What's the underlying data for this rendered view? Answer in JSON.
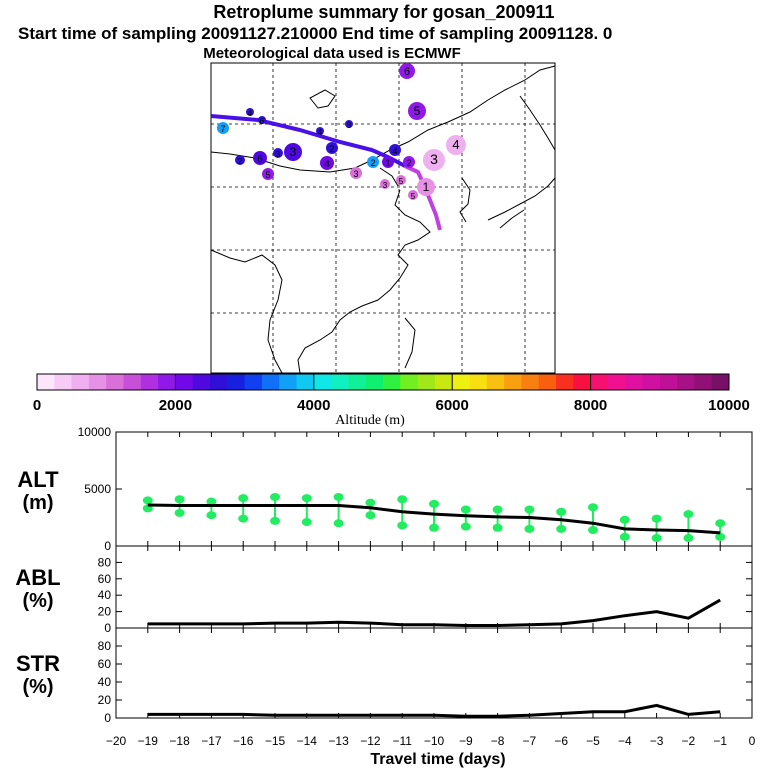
{
  "header": {
    "title": "Retroplume summary for gosan_200911",
    "subtitle": "Start time of sampling 20091127.210000     End time of sampling 20091128.     0",
    "met_line": "Meteorological data used is ECMWF"
  },
  "colorbar": {
    "label": "Altitude (m)",
    "ticks": [
      "0",
      "2000",
      "4000",
      "6000",
      "8000",
      "10000"
    ],
    "colors": [
      "#fbe6fb",
      "#f6ccf6",
      "#efb0ef",
      "#e690e6",
      "#d870d8",
      "#c850d8",
      "#b030e0",
      "#9018e8",
      "#7008e8",
      "#5008e0",
      "#3010d8",
      "#1820e0",
      "#1040f0",
      "#1070f8",
      "#10a0f8",
      "#10c8f0",
      "#10e8e8",
      "#10f0c0",
      "#10f098",
      "#10f070",
      "#30f040",
      "#70f020",
      "#a0e818",
      "#c8e810",
      "#f0f010",
      "#f8e010",
      "#f8c010",
      "#f8a010",
      "#f88010",
      "#f86010",
      "#f83020",
      "#f81040",
      "#f81070",
      "#f01090",
      "#e010a0",
      "#d010a0",
      "#c01098",
      "#a81088",
      "#901078",
      "#781068"
    ]
  },
  "map": {
    "plume_labels": [
      "6",
      "5",
      "4",
      "3",
      "2",
      "1",
      "4",
      "3",
      "2",
      "1",
      "5",
      "4",
      "3",
      "6",
      "5",
      "7",
      "4",
      "3",
      "2",
      "2",
      "3",
      "3",
      "4",
      "5",
      "6"
    ]
  },
  "chart_data": [
    {
      "type": "line",
      "panel": "ALT",
      "ylabel": "ALT (m)",
      "ylim": [
        0,
        10000
      ],
      "yticks": [
        "0",
        "5000",
        "10000"
      ],
      "x": [
        -19,
        -18,
        -17,
        -16,
        -15,
        -14,
        -13,
        -12,
        -11,
        -10,
        -9,
        -8,
        -7,
        -6,
        -5,
        -4,
        -3,
        -2,
        -1
      ],
      "series": [
        {
          "name": "mean altitude",
          "values": [
            3600,
            3550,
            3550,
            3550,
            3550,
            3550,
            3550,
            3350,
            3000,
            2800,
            2650,
            2550,
            2500,
            2300,
            2000,
            1500,
            1400,
            1350,
            1150
          ]
        },
        {
          "name": "cluster altitude (high)",
          "values": [
            4000,
            4100,
            3900,
            4200,
            4300,
            4200,
            4300,
            3800,
            4100,
            3700,
            3200,
            3200,
            3200,
            3000,
            3400,
            2300,
            2400,
            2800,
            2000
          ]
        },
        {
          "name": "cluster altitude (low)",
          "values": [
            3300,
            2900,
            2700,
            2400,
            2200,
            2100,
            2000,
            2700,
            1800,
            1600,
            1700,
            1600,
            1500,
            1500,
            1400,
            800,
            700,
            700,
            800
          ]
        }
      ]
    },
    {
      "type": "line",
      "panel": "ABL",
      "ylabel": "ABL (%)",
      "ylim": [
        0,
        100
      ],
      "yticks": [
        "0",
        "20",
        "40",
        "60",
        "80"
      ],
      "x": [
        -19,
        -18,
        -17,
        -16,
        -15,
        -14,
        -13,
        -12,
        -11,
        -10,
        -9,
        -8,
        -7,
        -6,
        -5,
        -4,
        -3,
        -2,
        -1
      ],
      "series": [
        {
          "name": "ABL fraction",
          "values": [
            5,
            5,
            5,
            5,
            6,
            6,
            7,
            6,
            4,
            4,
            3,
            3,
            4,
            5,
            9,
            15,
            20,
            12,
            34
          ]
        }
      ]
    },
    {
      "type": "line",
      "panel": "STR",
      "xlabel": "Travel time (days)",
      "ylabel": "STR (%)",
      "ylim": [
        0,
        100
      ],
      "yticks": [
        "0",
        "20",
        "40",
        "60",
        "80"
      ],
      "xticks": [
        "−20",
        "−19",
        "−18",
        "−17",
        "−16",
        "−15",
        "−14",
        "−13",
        "−12",
        "−11",
        "−10",
        "−9",
        "−8",
        "−7",
        "−6",
        "−5",
        "−4",
        "−3",
        "−2",
        "−1",
        "0"
      ],
      "x": [
        -19,
        -18,
        -17,
        -16,
        -15,
        -14,
        -13,
        -12,
        -11,
        -10,
        -9,
        -8,
        -7,
        -6,
        -5,
        -4,
        -3,
        -2,
        -1
      ],
      "series": [
        {
          "name": "STR fraction",
          "values": [
            4,
            4,
            4,
            4,
            3,
            3,
            3,
            3,
            3,
            3,
            2,
            2,
            3,
            5,
            7,
            7,
            14,
            4,
            7
          ]
        }
      ]
    }
  ]
}
